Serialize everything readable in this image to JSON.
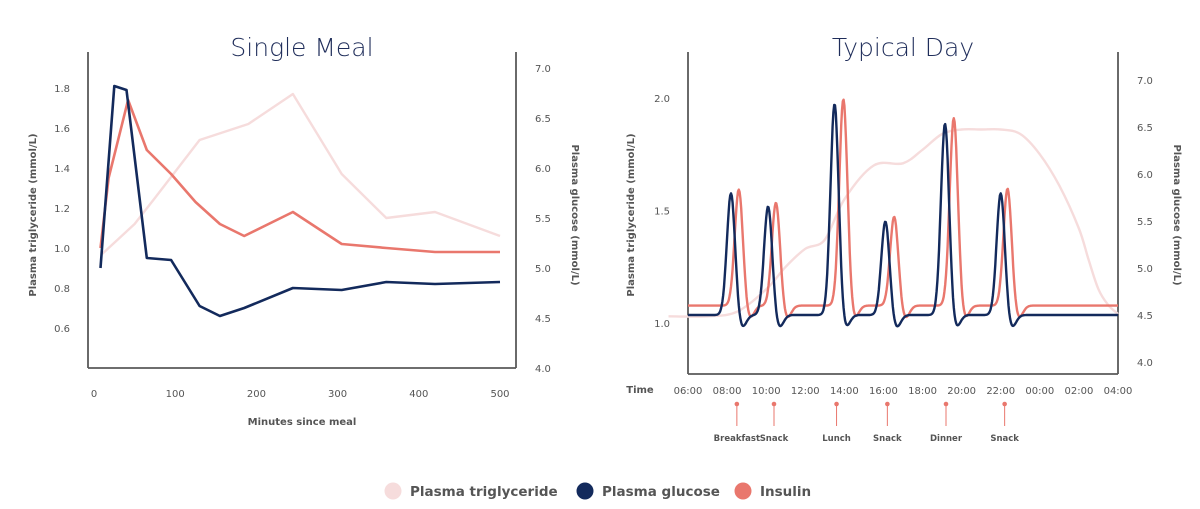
{
  "colors": {
    "triglyceride": "#f6dcdc",
    "glucose": "#132a5c",
    "insulin": "#e9776d",
    "axis": "#5a5a5a",
    "text": "#555555",
    "title": "#1f2d5a"
  },
  "legend": [
    {
      "name": "Plasma triglyceride",
      "series": "triglyceride"
    },
    {
      "name": "Plasma glucose",
      "series": "glucose"
    },
    {
      "name": "Insulin",
      "series": "insulin"
    }
  ],
  "chart_data": [
    {
      "type": "line",
      "title": "Single Meal",
      "xlabel": "Minutes since meal",
      "ylabel_left": "Plasma triglyceride (mmol/L)",
      "ylabel_right": "Plasma glucose (mmol/L)",
      "xlim": [
        0,
        515
      ],
      "xticks": [
        "0",
        "100",
        "200",
        "300",
        "400",
        "500"
      ],
      "ylim_left": [
        0.4,
        2.0
      ],
      "yticks_left": [
        "0.6",
        "0.8",
        "1.0",
        "1.2",
        "1.4",
        "1.6",
        "1.8"
      ],
      "ylim_right": [
        4.0,
        7.2
      ],
      "yticks_right": [
        "4.0",
        "4.5",
        "5.0",
        "5.5",
        "6.0",
        "6.5",
        "7.0"
      ],
      "grid": false,
      "series": [
        {
          "name": "Plasma triglyceride",
          "key": "triglyceride",
          "axis": "left",
          "x": [
            10,
            50,
            75,
            130,
            190,
            245,
            305,
            360,
            420,
            500
          ],
          "y": [
            0.97,
            1.12,
            1.25,
            1.54,
            1.62,
            1.77,
            1.37,
            1.15,
            1.18,
            1.06
          ]
        },
        {
          "name": "Plasma glucose",
          "key": "glucose",
          "axis": "right",
          "x": [
            8,
            25,
            40,
            65,
            95,
            130,
            155,
            185,
            245,
            305,
            360,
            420,
            500
          ],
          "y": [
            5.0,
            6.82,
            6.78,
            5.1,
            5.08,
            4.62,
            4.52,
            4.6,
            4.8,
            4.78,
            4.86,
            4.84,
            4.86
          ]
        },
        {
          "name": "Insulin",
          "key": "insulin",
          "axis": "left",
          "x": [
            8,
            18,
            42,
            65,
            95,
            125,
            155,
            185,
            245,
            305,
            360,
            420,
            500
          ],
          "y": [
            1.0,
            1.35,
            1.74,
            1.49,
            1.37,
            1.23,
            1.12,
            1.06,
            1.18,
            1.02,
            1.0,
            0.98,
            0.98
          ]
        }
      ]
    },
    {
      "type": "line",
      "title": "Typical Day",
      "xlabel": "Time",
      "ylabel_left": "Plasma triglyceride (mmol/L)",
      "ylabel_right": "Plasma glucose (mmol/L)",
      "xlim": [
        5,
        28
      ],
      "xticks": [
        "06:00",
        "08:00",
        "10:00",
        "12:00",
        "14:00",
        "16:00",
        "18:00",
        "20:00",
        "22:00",
        "00:00",
        "02:00",
        "04:00"
      ],
      "ylim_left": [
        0.8,
        2.25
      ],
      "yticks_left": [
        "1.0",
        "1.5",
        "2.0"
      ],
      "ylim_right": [
        3.95,
        7.15
      ],
      "yticks_right": [
        "4.0",
        "4.5",
        "5.0",
        "5.5",
        "6.0",
        "6.5",
        "7.0"
      ],
      "grid": false,
      "events": [
        {
          "label": "Breakfast",
          "time": 8.5
        },
        {
          "label": "Snack",
          "time": 10.4
        },
        {
          "label": "Lunch",
          "time": 13.6
        },
        {
          "label": "Snack",
          "time": 16.2
        },
        {
          "label": "Dinner",
          "time": 19.2
        },
        {
          "label": "Snack",
          "time": 22.2
        }
      ],
      "series": [
        {
          "name": "Plasma triglyceride",
          "key": "triglyceride",
          "axis": "left",
          "x": [
            5,
            7,
            8.5,
            10,
            11,
            12,
            13,
            14,
            15.5,
            17,
            18,
            19,
            20,
            21,
            22,
            23,
            24,
            25,
            26,
            26.5,
            27,
            27.5,
            28
          ],
          "y": [
            1.03,
            1.03,
            1.05,
            1.15,
            1.25,
            1.33,
            1.37,
            1.55,
            1.7,
            1.71,
            1.77,
            1.84,
            1.86,
            1.86,
            1.86,
            1.84,
            1.75,
            1.61,
            1.42,
            1.28,
            1.15,
            1.08,
            1.04
          ]
        },
        {
          "name": "Plasma glucose",
          "key": "glucose",
          "axis": "right",
          "peaks": [
            {
              "time": 8.2,
              "value": 5.8
            },
            {
              "time": 10.1,
              "value": 5.66
            },
            {
              "time": 13.5,
              "value": 6.75
            },
            {
              "time": 16.1,
              "value": 5.5
            },
            {
              "time": 19.15,
              "value": 6.54
            },
            {
              "time": 22.0,
              "value": 5.8
            }
          ],
          "baseline": 4.5
        },
        {
          "name": "Insulin",
          "key": "insulin",
          "axis": "right",
          "peaks": [
            {
              "time": 8.6,
              "value": 5.84
            },
            {
              "time": 10.5,
              "value": 5.7
            },
            {
              "time": 13.95,
              "value": 6.8
            },
            {
              "time": 16.55,
              "value": 5.55
            },
            {
              "time": 19.6,
              "value": 6.6
            },
            {
              "time": 22.35,
              "value": 5.85
            }
          ],
          "baseline": 4.6
        }
      ]
    }
  ]
}
